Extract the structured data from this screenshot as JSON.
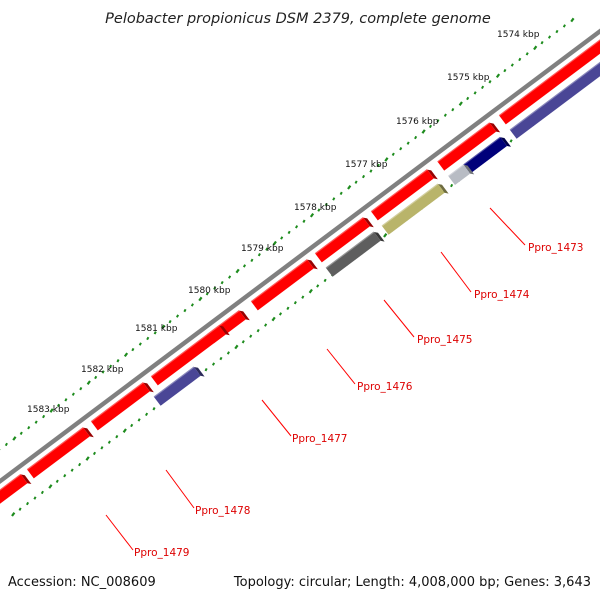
{
  "title": "Pelobacter propionicus DSM 2379, complete genome",
  "footer": {
    "accession": "Accession: NC_008609",
    "topology": "Topology: circular; Length: 4,008,000 bp; Genes: 3,643"
  },
  "colors": {
    "backbone": "#808080",
    "tick_dots": "#1e8c1e",
    "forward_gene": "#ff0000",
    "label_text": "#dd0000",
    "leader_line": "#ff0000",
    "cog_navy": "#00007a",
    "cog_slate": "#4a4696",
    "cog_grey": "#5e5e5e",
    "cog_olive": "#b9b46a",
    "cog_light": "#b8bcc4"
  },
  "ticks": [
    "1574 kbp",
    "1575 kbp",
    "1576 kbp",
    "1577 kbp",
    "1578 kbp",
    "1579 kbp",
    "1580 kbp",
    "1581 kbp",
    "1582 kbp",
    "1583 kbp"
  ],
  "genes": [
    {
      "label": "Ppro_1473",
      "feature_color": "slate"
    },
    {
      "label": "Ppro_1474",
      "feature_color": "olive"
    },
    {
      "label": "Ppro_1475",
      "feature_color": ""
    },
    {
      "label": "Ppro_1476",
      "feature_color": "grey"
    },
    {
      "label": "Ppro_1477",
      "feature_color": ""
    },
    {
      "label": "Ppro_1478",
      "feature_color": "slate"
    },
    {
      "label": "Ppro_1479",
      "feature_color": ""
    }
  ]
}
